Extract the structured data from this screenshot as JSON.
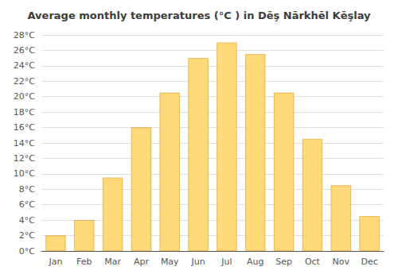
{
  "chart_data": {
    "type": "bar",
    "title": "Average monthly temperatures (°C ) in Dēş Nārkhēl Kēşlay",
    "categories": [
      "Jan",
      "Feb",
      "Mar",
      "Apr",
      "May",
      "Jun",
      "Jul",
      "Aug",
      "Sep",
      "Oct",
      "Nov",
      "Dec"
    ],
    "values": [
      2.0,
      4.0,
      9.5,
      16.0,
      20.5,
      25.0,
      27.0,
      25.5,
      20.5,
      14.5,
      8.5,
      4.5
    ],
    "color": "#FFD97A",
    "ylim": [
      0,
      28
    ],
    "yticks": [
      {
        "value": 0,
        "label": "0°C"
      },
      {
        "value": 2,
        "label": "2°C"
      },
      {
        "value": 4,
        "label": "4°C"
      },
      {
        "value": 6,
        "label": "6°C"
      },
      {
        "value": 8,
        "label": "8°C"
      },
      {
        "value": 10,
        "label": "10°C"
      },
      {
        "value": 12,
        "label": "12°C"
      },
      {
        "value": 14,
        "label": "14°C"
      },
      {
        "value": 16,
        "label": "16°C"
      },
      {
        "value": 18,
        "label": "18°C"
      },
      {
        "value": 20,
        "label": "20°C"
      },
      {
        "value": 22,
        "label": "22°C"
      },
      {
        "value": 24,
        "label": "24°C"
      },
      {
        "value": 26,
        "label": "26°C"
      },
      {
        "value": 28,
        "label": "28°C"
      }
    ],
    "grid": true
  }
}
